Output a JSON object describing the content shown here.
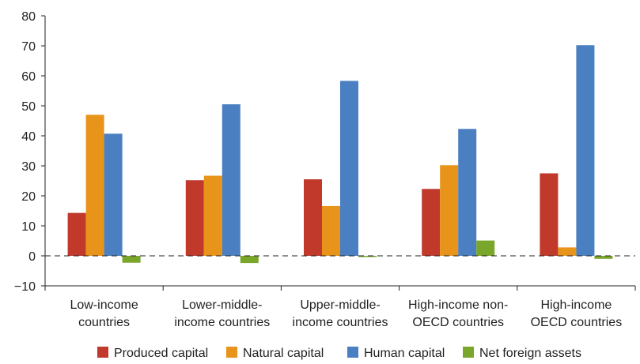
{
  "chart_data": {
    "type": "bar",
    "categories": [
      [
        "Low-income",
        "countries"
      ],
      [
        "Lower-middle-",
        "income countries"
      ],
      [
        "Upper-middle-",
        "income countries"
      ],
      [
        "High-income non-",
        "OECD countries"
      ],
      [
        "High-income",
        "OECD countries"
      ]
    ],
    "series": [
      {
        "name": "Produced capital",
        "color": "#c0392b",
        "values": [
          14.3,
          25.2,
          25.5,
          22.3,
          27.5
        ]
      },
      {
        "name": "Natural capital",
        "color": "#e8941a",
        "values": [
          47.0,
          26.7,
          16.6,
          30.2,
          2.8
        ]
      },
      {
        "name": "Human capital",
        "color": "#4a7fc1",
        "values": [
          40.7,
          50.5,
          58.3,
          42.3,
          70.2
        ]
      },
      {
        "name": "Net foreign assets",
        "color": "#7aa62b",
        "values": [
          -2.3,
          -2.4,
          -0.4,
          5.1,
          -1.0
        ]
      }
    ],
    "ylim": [
      -10,
      80
    ],
    "yticks": [
      -10,
      0,
      10,
      20,
      30,
      40,
      50,
      60,
      70,
      80
    ],
    "zero_line": "dashed",
    "grid": false,
    "legend_position": "bottom",
    "title": "",
    "xlabel": "",
    "ylabel": ""
  }
}
